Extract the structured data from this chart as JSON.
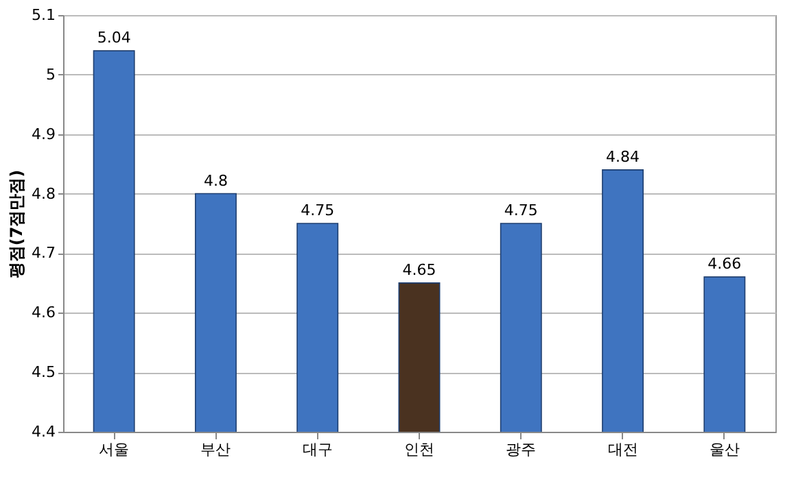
{
  "chart_data": {
    "type": "bar",
    "ylabel": "평점(7점만점)",
    "categories": [
      "서울",
      "부산",
      "대구",
      "인천",
      "광주",
      "대전",
      "울산"
    ],
    "values": [
      5.04,
      4.8,
      4.75,
      4.65,
      4.75,
      4.84,
      4.66
    ],
    "colors": [
      "#3f74c0",
      "#3f74c0",
      "#3f74c0",
      "#4a3220",
      "#3f74c0",
      "#3f74c0",
      "#3f74c0"
    ],
    "ylim": [
      4.4,
      5.1
    ],
    "yticks": [
      4.4,
      4.5,
      4.6,
      4.7,
      4.8,
      4.9,
      5,
      5.1
    ],
    "grid": "y",
    "data_labels": true
  }
}
